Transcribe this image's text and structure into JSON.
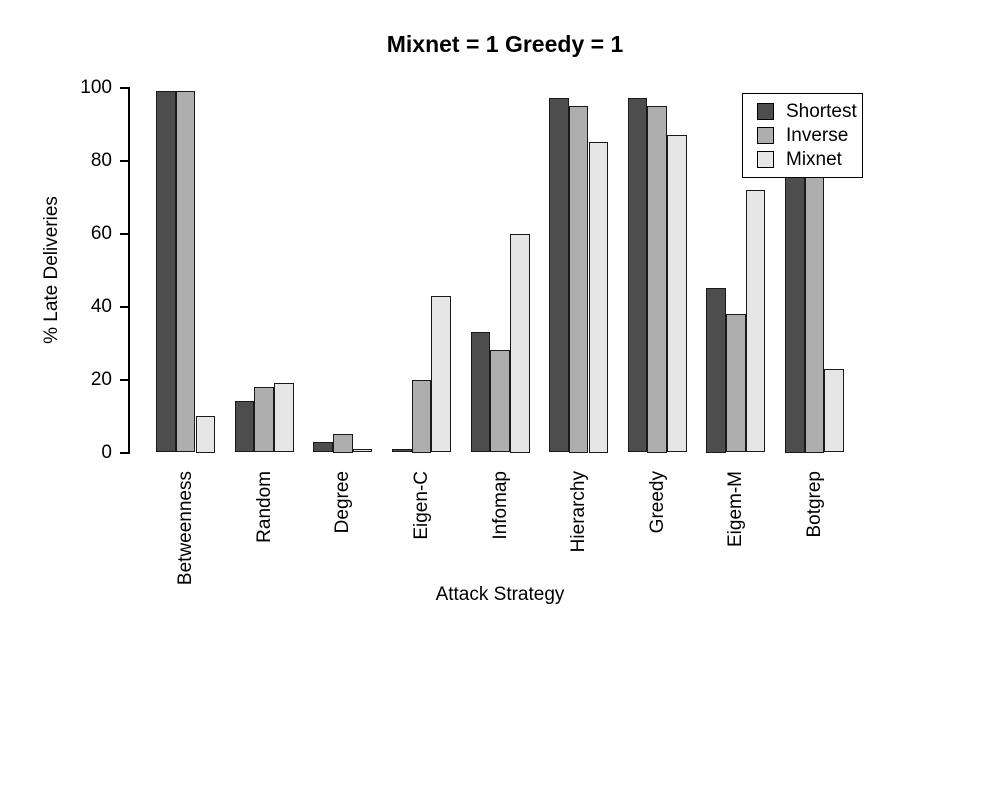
{
  "title": "Mixnet = 1 Greedy = 1",
  "colors": {
    "background": "#FFFFFF",
    "axis": "#000000",
    "bar_border": "#1A1A1A",
    "series_shortest": "#4D4D4D",
    "series_inverse": "#AEAEAE",
    "series_mixnet": "#E6E6E6"
  },
  "chart_data": {
    "type": "bar",
    "title": "Mixnet = 1 Greedy = 1",
    "xlabel": "Attack Strategy",
    "ylabel": "% Late Deliveries",
    "ylim": [
      0,
      100
    ],
    "yticks": [
      0,
      20,
      40,
      60,
      80,
      100
    ],
    "grid": false,
    "legend_position": "top-right",
    "legend_entries": [
      "Shortest",
      "Inverse",
      "Mixnet"
    ],
    "categories": [
      "Betweenness",
      "Random",
      "Degree",
      "Eigen-C",
      "Infomap",
      "Hierarchy",
      "Greedy",
      "Eigem-M",
      "Botgrep"
    ],
    "series": [
      {
        "name": "Shortest",
        "color": "#4D4D4D",
        "values": [
          99,
          14,
          3,
          1,
          33,
          97,
          97,
          45,
          80
        ]
      },
      {
        "name": "Inverse",
        "color": "#AEAEAE",
        "values": [
          99,
          18,
          5,
          20,
          28,
          95,
          95,
          38,
          80
        ]
      },
      {
        "name": "Mixnet",
        "color": "#E6E6E6",
        "values": [
          10,
          19,
          1,
          43,
          60,
          85,
          87,
          72,
          23
        ]
      }
    ]
  }
}
